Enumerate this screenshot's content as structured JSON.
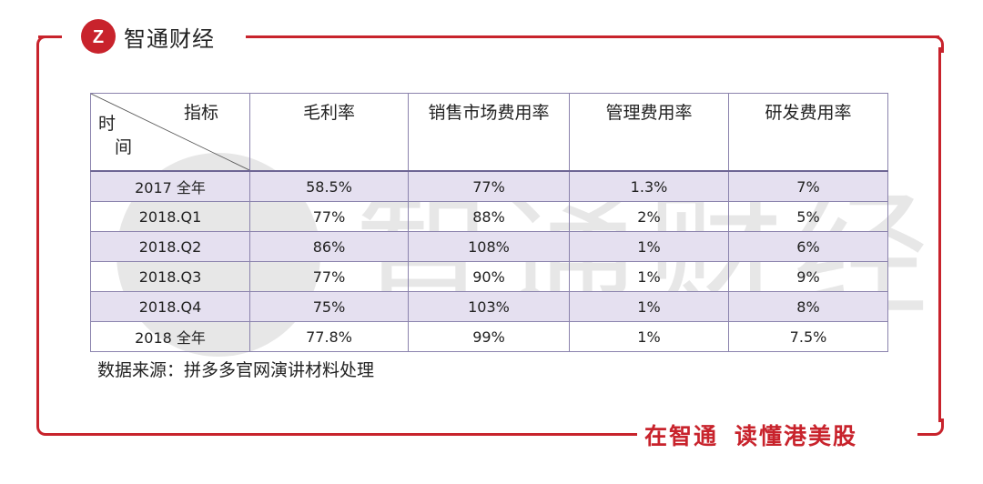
{
  "brand": {
    "name": "智通财经",
    "logo_text": "Z",
    "icon": "zhitong-logo-icon"
  },
  "watermark": {
    "text": "智通财经"
  },
  "table": {
    "corner": {
      "top_label": "指标",
      "left_label_1": "时",
      "left_label_2": "间"
    },
    "headers": [
      "毛利率",
      "销售市场费用率",
      "管理费用率",
      "研发费用率"
    ],
    "rows": [
      {
        "period": "2017 全年",
        "values": [
          "58.5%",
          "77%",
          "1.3%",
          "7%"
        ]
      },
      {
        "period": "2018.Q1",
        "values": [
          "77%",
          "88%",
          "2%",
          "5%"
        ]
      },
      {
        "period": "2018.Q2",
        "values": [
          "86%",
          "108%",
          "1%",
          "6%"
        ]
      },
      {
        "period": "2018.Q3",
        "values": [
          "77%",
          "90%",
          "1%",
          "9%"
        ]
      },
      {
        "period": "2018.Q4",
        "values": [
          "75%",
          "103%",
          "1%",
          "8%"
        ]
      },
      {
        "period": "2018 全年",
        "values": [
          "77.8%",
          "99%",
          "1%",
          "7.5%"
        ]
      }
    ]
  },
  "source_note": "数据来源：拼多多官网演讲材料处理",
  "slogan": {
    "part1": "在智通",
    "part2": "读懂港美股"
  },
  "colors": {
    "accent": "#c8232c",
    "row_shade": "#e5e0f0",
    "table_border": "#8b83ad"
  }
}
